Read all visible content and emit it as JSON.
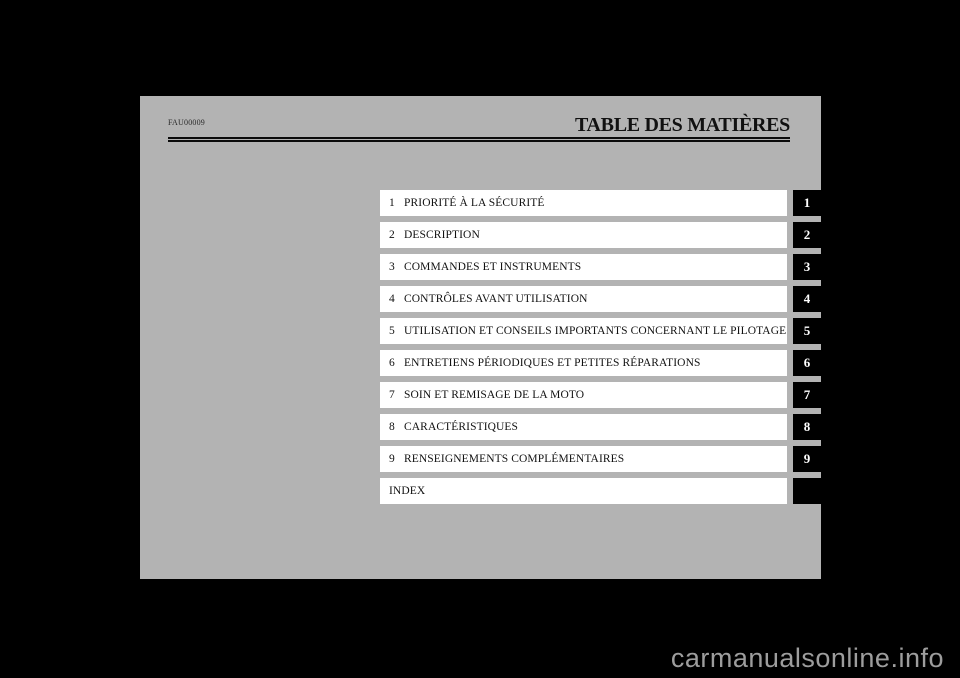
{
  "page": {
    "code": "FAU00009",
    "title": "TABLE DES MATIÈRES"
  },
  "toc": {
    "rows": [
      {
        "num": "1",
        "label": "PRIORITÉ À LA SÉCURITÉ",
        "tab": "1"
      },
      {
        "num": "2",
        "label": "DESCRIPTION",
        "tab": "2"
      },
      {
        "num": "3",
        "label": "COMMANDES ET INSTRUMENTS",
        "tab": "3"
      },
      {
        "num": "4",
        "label": "CONTRÔLES AVANT UTILISATION",
        "tab": "4"
      },
      {
        "num": "5",
        "label": "UTILISATION ET CONSEILS IMPORTANTS CONCERNANT LE PILOTAGE",
        "tab": "5"
      },
      {
        "num": "6",
        "label": "ENTRETIENS PÉRIODIQUES ET PETITES RÉPARATIONS",
        "tab": "6"
      },
      {
        "num": "7",
        "label": "SOIN ET REMISAGE DE LA MOTO",
        "tab": "7"
      },
      {
        "num": "8",
        "label": "CARACTÉRISTIQUES",
        "tab": "8"
      },
      {
        "num": "9",
        "label": "RENSEIGNEMENTS COMPLÉMENTAIRES",
        "tab": "9"
      },
      {
        "num": "",
        "label": "INDEX",
        "tab": ""
      }
    ]
  },
  "watermark": "carmanualsonline.info",
  "colors": {
    "background": "#000000",
    "page_background": "#b3b3b3",
    "row_bar": "#ffffff",
    "text": "#111111",
    "tab_background": "#000000",
    "tab_text": "#ffffff",
    "watermark_text": "#9d9d9d"
  }
}
